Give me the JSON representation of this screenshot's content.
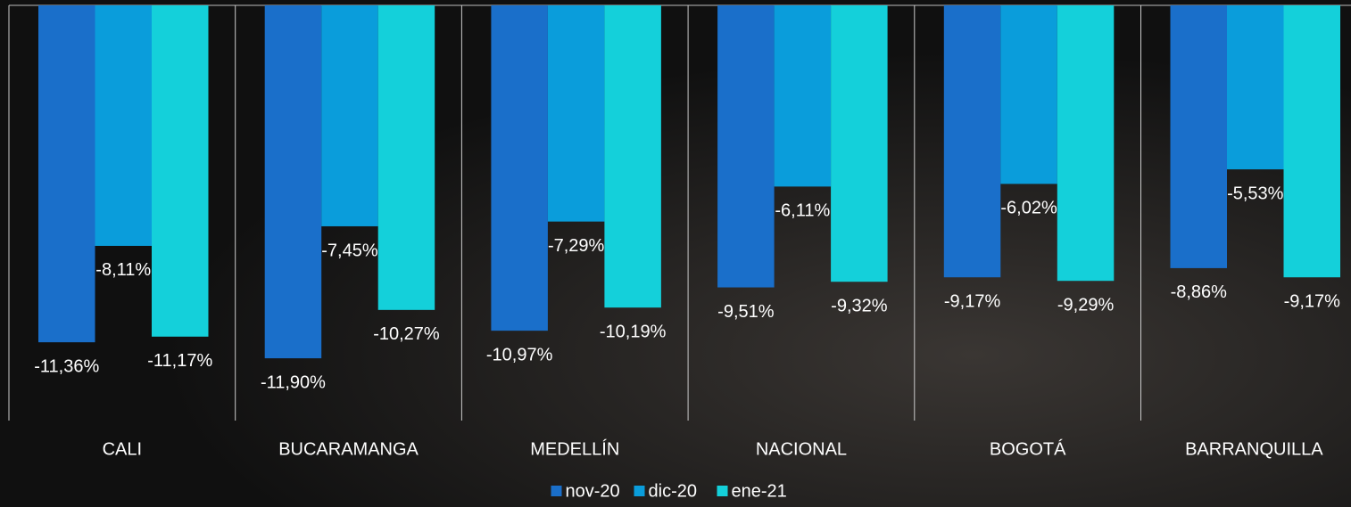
{
  "chart_data": {
    "type": "bar",
    "categories": [
      "CALI",
      "BUCARAMANGA",
      "MEDELLÍN",
      "NACIONAL",
      "BOGOTÁ",
      "BARRANQUILLA"
    ],
    "series": [
      {
        "name": "nov-20",
        "color": "#1a6fca",
        "values": [
          -11.36,
          -11.9,
          -10.97,
          -9.51,
          -9.17,
          -8.86
        ],
        "value_labels": [
          "-11,36%",
          "-11,90%",
          "-10,97%",
          "-9,51%",
          "-9,17%",
          "-8,86%"
        ]
      },
      {
        "name": "dic-20",
        "color": "#0a9ddb",
        "values": [
          -8.11,
          -7.45,
          -7.29,
          -6.11,
          -6.02,
          -5.53
        ],
        "value_labels": [
          "-8,11%",
          "-7,45%",
          "-7,29%",
          "-6,11%",
          "-6,02%",
          "-5,53%"
        ]
      },
      {
        "name": "ene-21",
        "color": "#14d0da",
        "values": [
          -11.17,
          -10.27,
          -10.19,
          -9.32,
          -9.29,
          -9.17
        ],
        "value_labels": [
          "-11,17%",
          "-10,27%",
          "-10,19%",
          "-9,32%",
          "-9,29%",
          "-9,17%"
        ]
      }
    ],
    "ylim": [
      -14,
      0
    ],
    "legend": "bottom"
  }
}
